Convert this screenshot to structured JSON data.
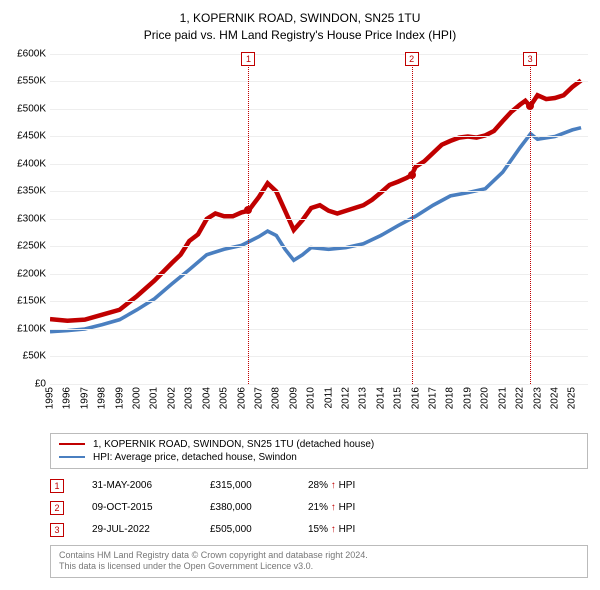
{
  "title": {
    "line1": "1, KOPERNIK ROAD, SWINDON, SN25 1TU",
    "line2": "Price paid vs. HM Land Registry's House Price Index (HPI)",
    "fontsize": 12,
    "color": "#000000"
  },
  "chart": {
    "type": "line",
    "background_color": "#ffffff",
    "grid_color": "#eeeeee",
    "axis_color": "#000000",
    "fontsize_ticks": 10,
    "ylim": [
      0,
      600000
    ],
    "ytick_step": 50000,
    "yticks": [
      "£0",
      "£50K",
      "£100K",
      "£150K",
      "£200K",
      "£250K",
      "£300K",
      "£350K",
      "£400K",
      "£450K",
      "£500K",
      "£550K",
      "£600K"
    ],
    "xlim": [
      1995,
      2025.9
    ],
    "xticks": [
      "1995",
      "1996",
      "1997",
      "1998",
      "1999",
      "2000",
      "2001",
      "2002",
      "2003",
      "2004",
      "2005",
      "2006",
      "2007",
      "2008",
      "2009",
      "2010",
      "2011",
      "2012",
      "2013",
      "2014",
      "2015",
      "2016",
      "2017",
      "2018",
      "2019",
      "2020",
      "2021",
      "2022",
      "2023",
      "2024",
      "2025"
    ],
    "series": [
      {
        "name": "price_paid",
        "label": "1, KOPERNIK ROAD, SWINDON, SN25 1TU (detached house)",
        "color": "#c00000",
        "line_width": 1.5,
        "points": [
          [
            1995.0,
            118000
          ],
          [
            1996.0,
            115000
          ],
          [
            1997.0,
            117000
          ],
          [
            1998.0,
            126000
          ],
          [
            1999.0,
            135000
          ],
          [
            2000.0,
            160000
          ],
          [
            2001.0,
            188000
          ],
          [
            2002.0,
            220000
          ],
          [
            2002.5,
            235000
          ],
          [
            2003.0,
            260000
          ],
          [
            2003.5,
            272000
          ],
          [
            2004.0,
            300000
          ],
          [
            2004.5,
            310000
          ],
          [
            2005.0,
            305000
          ],
          [
            2005.5,
            305000
          ],
          [
            2006.0,
            312000
          ],
          [
            2006.4,
            315000
          ],
          [
            2007.0,
            340000
          ],
          [
            2007.5,
            365000
          ],
          [
            2008.0,
            350000
          ],
          [
            2008.5,
            315000
          ],
          [
            2009.0,
            280000
          ],
          [
            2009.5,
            298000
          ],
          [
            2010.0,
            320000
          ],
          [
            2010.5,
            325000
          ],
          [
            2011.0,
            315000
          ],
          [
            2011.5,
            310000
          ],
          [
            2012.0,
            315000
          ],
          [
            2012.5,
            320000
          ],
          [
            2013.0,
            325000
          ],
          [
            2013.5,
            335000
          ],
          [
            2014.0,
            348000
          ],
          [
            2014.5,
            362000
          ],
          [
            2015.0,
            368000
          ],
          [
            2015.5,
            375000
          ],
          [
            2015.77,
            380000
          ],
          [
            2016.0,
            395000
          ],
          [
            2016.5,
            405000
          ],
          [
            2017.0,
            420000
          ],
          [
            2017.5,
            435000
          ],
          [
            2018.0,
            442000
          ],
          [
            2018.5,
            448000
          ],
          [
            2019.0,
            450000
          ],
          [
            2019.5,
            448000
          ],
          [
            2020.0,
            452000
          ],
          [
            2020.5,
            460000
          ],
          [
            2021.0,
            478000
          ],
          [
            2021.5,
            495000
          ],
          [
            2022.0,
            508000
          ],
          [
            2022.3,
            515000
          ],
          [
            2022.58,
            505000
          ],
          [
            2023.0,
            525000
          ],
          [
            2023.5,
            518000
          ],
          [
            2024.0,
            520000
          ],
          [
            2024.5,
            525000
          ],
          [
            2025.0,
            540000
          ],
          [
            2025.5,
            552000
          ]
        ]
      },
      {
        "name": "hpi",
        "label": "HPI: Average price, detached house, Swindon",
        "color": "#4a7fc0",
        "line_width": 1.2,
        "points": [
          [
            1995.0,
            95000
          ],
          [
            1996.0,
            97000
          ],
          [
            1997.0,
            100000
          ],
          [
            1998.0,
            108000
          ],
          [
            1999.0,
            117000
          ],
          [
            2000.0,
            135000
          ],
          [
            2001.0,
            155000
          ],
          [
            2002.0,
            182000
          ],
          [
            2003.0,
            208000
          ],
          [
            2004.0,
            235000
          ],
          [
            2005.0,
            245000
          ],
          [
            2006.0,
            252000
          ],
          [
            2007.0,
            268000
          ],
          [
            2007.5,
            278000
          ],
          [
            2008.0,
            270000
          ],
          [
            2008.5,
            245000
          ],
          [
            2009.0,
            225000
          ],
          [
            2009.5,
            235000
          ],
          [
            2010.0,
            248000
          ],
          [
            2011.0,
            245000
          ],
          [
            2012.0,
            248000
          ],
          [
            2013.0,
            255000
          ],
          [
            2014.0,
            270000
          ],
          [
            2015.0,
            288000
          ],
          [
            2016.0,
            305000
          ],
          [
            2017.0,
            325000
          ],
          [
            2018.0,
            342000
          ],
          [
            2019.0,
            348000
          ],
          [
            2020.0,
            355000
          ],
          [
            2021.0,
            385000
          ],
          [
            2022.0,
            430000
          ],
          [
            2022.6,
            455000
          ],
          [
            2023.0,
            445000
          ],
          [
            2024.0,
            450000
          ],
          [
            2025.0,
            462000
          ],
          [
            2025.5,
            466000
          ]
        ]
      }
    ],
    "markers": [
      {
        "num": "1",
        "x": 2006.4,
        "y": 315000
      },
      {
        "num": "2",
        "x": 2015.77,
        "y": 380000
      },
      {
        "num": "3",
        "x": 2022.58,
        "y": 505000
      }
    ]
  },
  "legend": {
    "border_color": "#bbbbbb",
    "fontsize": 10,
    "items": [
      {
        "color": "#c00000",
        "label": "1, KOPERNIK ROAD, SWINDON, SN25 1TU (detached house)"
      },
      {
        "color": "#4a7fc0",
        "label": "HPI: Average price, detached house, Swindon"
      }
    ]
  },
  "events": [
    {
      "num": "1",
      "date": "31-MAY-2006",
      "price": "£315,000",
      "delta": "28% ↑ HPI"
    },
    {
      "num": "2",
      "date": "09-OCT-2015",
      "price": "£380,000",
      "delta": "21% ↑ HPI"
    },
    {
      "num": "3",
      "date": "29-JUL-2022",
      "price": "£505,000",
      "delta": "15% ↑ HPI"
    }
  ],
  "footnote": {
    "line1": "Contains HM Land Registry data © Crown copyright and database right 2024.",
    "line2": "This data is licensed under the Open Government Licence v3.0.",
    "border_color": "#bbbbbb",
    "color": "#777777",
    "fontsize": 9
  }
}
